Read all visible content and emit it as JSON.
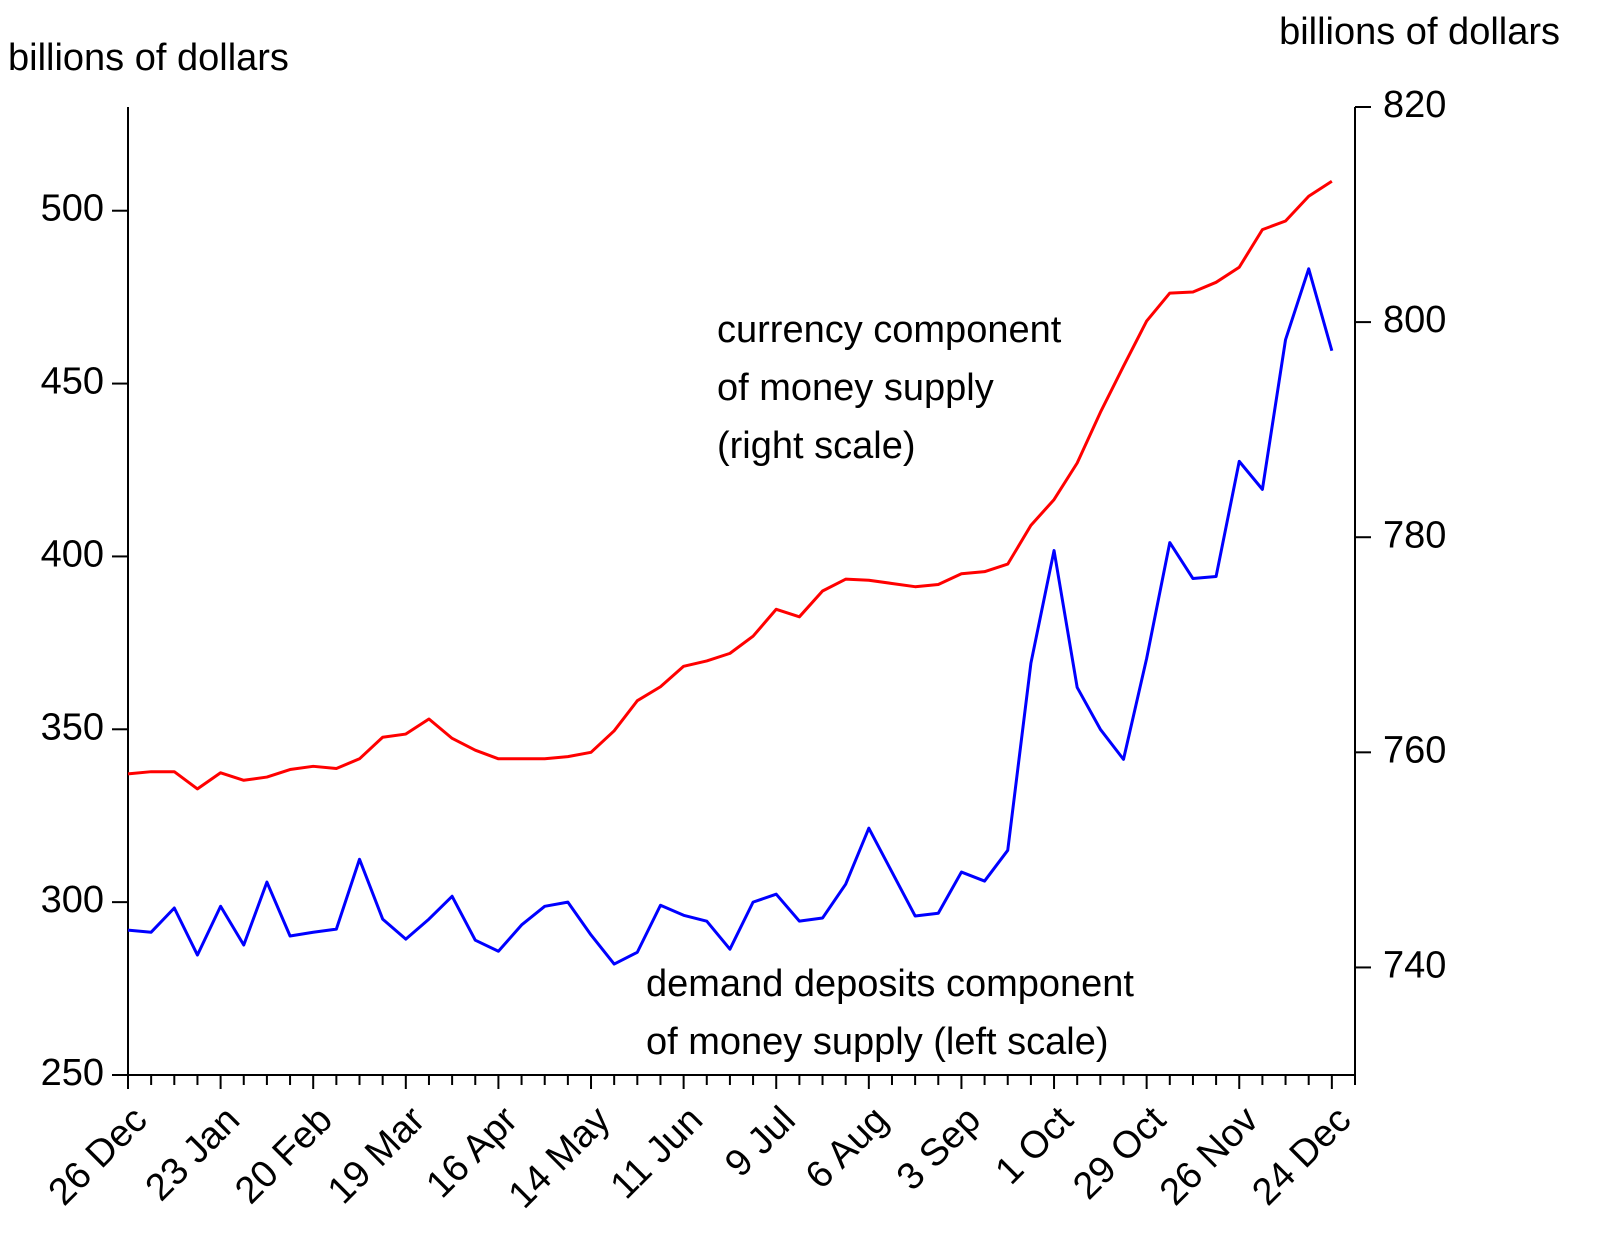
{
  "chart_data": {
    "type": "line",
    "ylabel": "billions of dollars",
    "y2label": "billions of dollars",
    "categories": [
      "26 Dec",
      null,
      null,
      null,
      "23 Jan",
      null,
      null,
      null,
      "20 Feb",
      null,
      null,
      null,
      "19 Mar",
      null,
      null,
      null,
      "16 Apr",
      null,
      null,
      null,
      "14 May",
      null,
      null,
      null,
      "11 Jun",
      null,
      null,
      null,
      "9 Jul",
      null,
      null,
      null,
      "6 Aug",
      null,
      null,
      null,
      "3 Sep",
      null,
      null,
      null,
      "1 Oct",
      null,
      null,
      null,
      "29 Oct",
      null,
      null,
      null,
      "26 Nov",
      null,
      null,
      null,
      "24 Dec"
    ],
    "series": [
      {
        "name": "currency component of money supply (right scale)",
        "color": "#ff0000",
        "axis": "y2",
        "values": [
          758.0,
          758.2,
          758.2,
          756.6,
          758.1,
          757.4,
          757.7,
          758.4,
          758.7,
          758.5,
          759.4,
          761.4,
          761.7,
          763.1,
          761.3,
          760.2,
          759.4,
          759.4,
          759.4,
          759.6,
          760.0,
          762.0,
          764.8,
          766.1,
          768.0,
          768.5,
          769.2,
          770.8,
          773.3,
          772.6,
          775.0,
          776.1,
          776.0,
          775.7,
          775.4,
          775.6,
          776.6,
          776.8,
          777.5,
          781.1,
          783.5,
          786.9,
          791.6,
          795.9,
          800.1,
          802.7,
          802.8,
          803.7,
          805.1,
          808.6,
          809.4,
          811.7,
          813.1
        ]
      },
      {
        "name": "demand deposits component of money supply (left scale)",
        "color": "#0000ff",
        "values": [
          291.9,
          291.3,
          298.3,
          284.7,
          298.8,
          287.6,
          305.8,
          290.2,
          291.3,
          292.2,
          312.4,
          295.1,
          289.3,
          295.1,
          301.7,
          289.0,
          285.8,
          293.4,
          298.8,
          300.0,
          290.5,
          282.1,
          285.5,
          299.1,
          296.2,
          294.5,
          286.4,
          300.0,
          302.3,
          294.5,
          295.4,
          305.2,
          321.4,
          308.7,
          296.0,
          296.8,
          308.7,
          306.1,
          315.0,
          369.1,
          401.7,
          362.1,
          350.0,
          341.3,
          370.5,
          404.0,
          393.6,
          394.2,
          427.5,
          419.4,
          462.7,
          483.2,
          459.5
        ]
      }
    ],
    "annotations": [
      [
        "currency component",
        "of money supply",
        "(right scale)"
      ],
      [
        "demand deposits component",
        "of money supply (left scale)"
      ]
    ],
    "ylim": [
      250,
      530
    ],
    "yticks": [
      250,
      300,
      350,
      400,
      450,
      500
    ],
    "y2lim": [
      730,
      820
    ],
    "y2ticks": [
      740,
      760,
      780,
      800,
      820
    ]
  }
}
